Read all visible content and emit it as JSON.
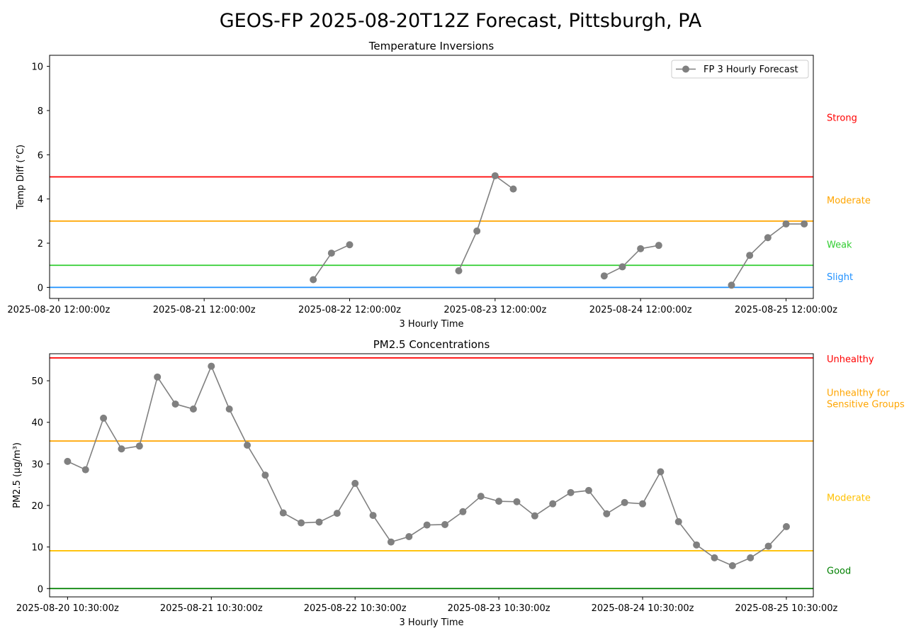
{
  "figure_title": "GEOS-FP 2025-08-20T12Z Forecast, Pittsburgh, PA",
  "chart_data": [
    {
      "type": "line",
      "title": "Temperature Inversions",
      "xlabel": "3 Hourly Time",
      "ylabel": "Temp Diff (°C)",
      "x_start": "2025-08-20 12:00:00z",
      "x_step_hours": 3,
      "xlim": [
        -0.5,
        41.5
      ],
      "ylim": [
        -0.5,
        10.5
      ],
      "yticks": [
        0,
        2,
        4,
        6,
        8,
        10
      ],
      "xticks": [
        {
          "x": 0,
          "label": "2025-08-20 12:00:00z"
        },
        {
          "x": 8,
          "label": "2025-08-21 12:00:00z"
        },
        {
          "x": 16,
          "label": "2025-08-22 12:00:00z"
        },
        {
          "x": 24,
          "label": "2025-08-23 12:00:00z"
        },
        {
          "x": 32,
          "label": "2025-08-24 12:00:00z"
        },
        {
          "x": 40,
          "label": "2025-08-25 12:00:00z"
        }
      ],
      "legend": {
        "position": "top-right",
        "entries": [
          "FP 3 Hourly Forecast"
        ]
      },
      "series": [
        {
          "name": "FP 3 Hourly Forecast",
          "color": "#808080",
          "values": [
            null,
            null,
            null,
            null,
            null,
            null,
            null,
            null,
            null,
            null,
            null,
            null,
            null,
            null,
            0.35,
            1.55,
            1.93,
            null,
            null,
            null,
            null,
            null,
            0.75,
            2.55,
            5.05,
            4.45,
            null,
            null,
            null,
            null,
            0.52,
            0.93,
            1.75,
            1.9,
            null,
            null,
            null,
            0.1,
            1.45,
            2.25,
            2.87,
            2.87
          ]
        }
      ],
      "thresholds": [
        {
          "value": 0,
          "color": "#1e90ff"
        },
        {
          "value": 1,
          "color": "#32cd32"
        },
        {
          "value": 3,
          "color": "#ffa500"
        },
        {
          "value": 5,
          "color": "#ff0000"
        }
      ],
      "category_labels": [
        {
          "text": "Strong",
          "color": "#ff0000",
          "y": 7.7
        },
        {
          "text": "Moderate",
          "color": "#ffa500",
          "y": 3.95
        },
        {
          "text": "Weak",
          "color": "#32cd32",
          "y": 1.95
        },
        {
          "text": "Slight",
          "color": "#1e90ff",
          "y": 0.5
        }
      ]
    },
    {
      "type": "line",
      "title": "PM2.5 Concentrations",
      "xlabel": "3 Hourly Time",
      "ylabel": "PM2.5 (μg/m³)",
      "x_start": "2025-08-20 10:30:00z",
      "x_step_hours": 3,
      "xlim": [
        -1,
        41.5
      ],
      "ylim": [
        -2,
        56.5
      ],
      "yticks": [
        0,
        10,
        20,
        30,
        40,
        50
      ],
      "xticks": [
        {
          "x": 0,
          "label": "2025-08-20 10:30:00z"
        },
        {
          "x": 8,
          "label": "2025-08-21 10:30:00z"
        },
        {
          "x": 16,
          "label": "2025-08-22 10:30:00z"
        },
        {
          "x": 24,
          "label": "2025-08-23 10:30:00z"
        },
        {
          "x": 32,
          "label": "2025-08-24 10:30:00z"
        },
        {
          "x": 40,
          "label": "2025-08-25 10:30:00z"
        }
      ],
      "series": [
        {
          "color": "#808080",
          "values": [
            30.6,
            28.6,
            41.0,
            33.6,
            34.3,
            50.9,
            44.4,
            43.2,
            53.5,
            43.2,
            34.5,
            27.3,
            18.2,
            15.8,
            16.0,
            18.1,
            25.3,
            17.6,
            11.2,
            12.5,
            15.3,
            15.4,
            18.5,
            22.2,
            21.0,
            20.9,
            17.5,
            20.4,
            23.1,
            23.6,
            18.0,
            20.7,
            20.4,
            28.1,
            16.1,
            10.5,
            7.4,
            5.5,
            7.4,
            10.2,
            14.9
          ]
        }
      ],
      "thresholds": [
        {
          "value": 0,
          "color": "#008000"
        },
        {
          "value": 9.1,
          "color": "#ffc000"
        },
        {
          "value": 35.5,
          "color": "#ffa500"
        },
        {
          "value": 55.5,
          "color": "#ff0000"
        }
      ],
      "category_labels": [
        {
          "text": "Unhealthy",
          "color": "#ff0000",
          "y": 55.3
        },
        {
          "text": "Unhealthy for",
          "color": "#ffa500",
          "y": 47.2
        },
        {
          "text": "Sensitive Groups",
          "color": "#ffa500",
          "y": 44.5
        },
        {
          "text": "Moderate",
          "color": "#ffc000",
          "y": 22.0
        },
        {
          "text": "Good",
          "color": "#008000",
          "y": 4.4
        }
      ]
    }
  ]
}
